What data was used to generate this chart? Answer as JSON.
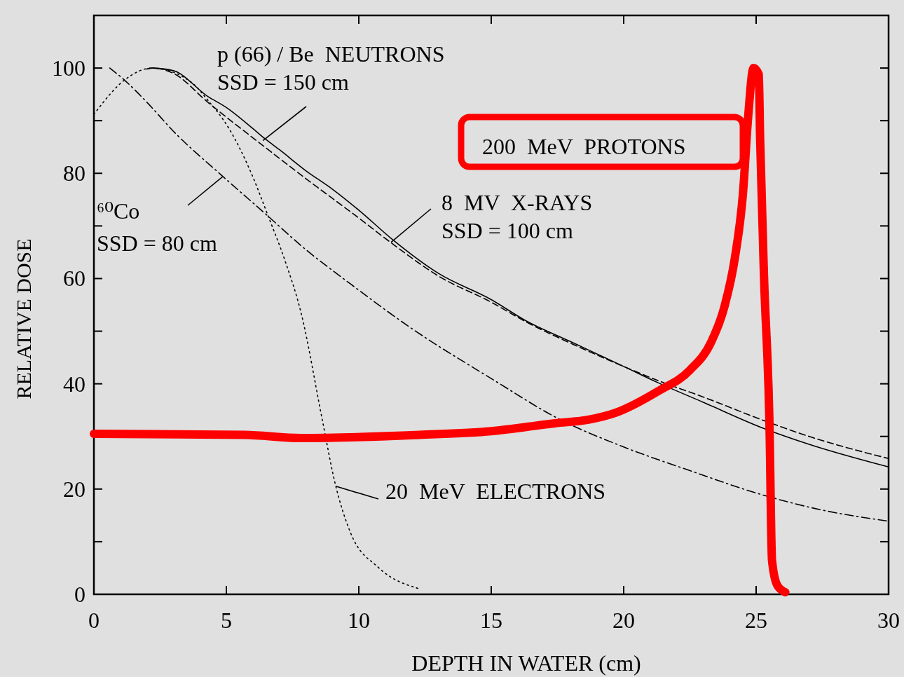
{
  "chart_data": {
    "type": "line",
    "xlabel": "DEPTH IN WATER (cm)",
    "ylabel": "RELATIVE DOSE",
    "xlim": [
      0,
      30
    ],
    "xticks": [
      0,
      5,
      10,
      15,
      20,
      25,
      30
    ],
    "ylim": [
      0,
      110
    ],
    "yticks": [
      0,
      {
        "value": 10,
        "label": null
      },
      20,
      {
        "value": 30,
        "label": null
      },
      40,
      {
        "value": 50,
        "label": null
      },
      60,
      {
        "value": 70,
        "label": null
      },
      80,
      {
        "value": 90,
        "label": null
      },
      100
    ],
    "grid": false,
    "annotations": [
      {
        "text": "p (66) / Be  NEUTRONS\nSSD = 150 cm",
        "x": 6.38,
        "y": 86.2
      },
      {
        "text": "8  MV  X-RAYS\nSSD = 100 cm",
        "x": 11.22,
        "y": 66.9
      },
      {
        "text": "⁶⁰Co\nSSD = 80 cm",
        "x": 4.87,
        "y": 79.4
      },
      {
        "text": "20  MeV  ELECTRONS",
        "x": 9.15,
        "y": 20.5
      },
      "200  MeV  PROTONS"
    ],
    "series": [
      {
        "color": "#000000",
        "line_style": "solid",
        "x": [
          2,
          2.2,
          3,
          4.3,
          5,
          6,
          6.45,
          7,
          8,
          9,
          10,
          11.3,
          13,
          15,
          16.3,
          18,
          20,
          21.3,
          23,
          25.3,
          27,
          30
        ],
        "values": [
          99.8,
          100,
          99.5,
          94.6,
          92.5,
          88.5,
          86.6,
          84.5,
          80.5,
          77,
          73,
          67.3,
          61,
          56,
          52,
          48,
          43.3,
          40.2,
          36.5,
          31.5,
          28.5,
          24.2
        ]
      },
      {
        "color": "#000000",
        "line_style": "dashed",
        "x": [
          2,
          2.2,
          3,
          4.3,
          6.45,
          8,
          10,
          11.3,
          13,
          15,
          16.3,
          18,
          20,
          21.3,
          23,
          25.3,
          27,
          30
        ],
        "values": [
          99.8,
          100,
          99,
          93.5,
          85,
          79,
          71.5,
          66.5,
          60.5,
          55.5,
          51.8,
          47.7,
          43.3,
          40.6,
          37.5,
          33,
          30,
          25.8
        ]
      },
      {
        "color": "#000000",
        "line_style": "dashdot",
        "x": [
          0.6,
          1.2,
          2,
          3,
          4.87,
          6.43,
          8,
          9.68,
          12,
          15,
          17.6,
          20,
          22.5,
          25.3,
          27.5,
          30
        ],
        "values": [
          100,
          97.5,
          93.5,
          88,
          79.4,
          72.5,
          65.5,
          59,
          50.5,
          41,
          33.2,
          28,
          23.5,
          18.8,
          16,
          13.9
        ]
      },
      {
        "color": "#000000",
        "line_style": "dotted",
        "x": [
          0,
          1.2,
          2.2,
          3.7,
          4.3,
          5.1,
          5.9,
          6.6,
          7.2,
          7.83,
          8.62,
          9.1,
          9.68,
          10.74,
          12.25
        ],
        "values": [
          91.2,
          97.9,
          100,
          97.2,
          93.9,
          88.5,
          80.5,
          71.6,
          63.6,
          53.3,
          33.2,
          21.2,
          11.8,
          5.1,
          1.1
        ]
      },
      {
        "color": "#ff0000",
        "line_style": "solid",
        "x": [
          0,
          5.7,
          7.8,
          12.3,
          15,
          17.4,
          18.7,
          19.7,
          21.3,
          22.5,
          23.3,
          23.8,
          24.2,
          24.5,
          24.7,
          24.9,
          25.1,
          25.15,
          25.3,
          25.5,
          25.6,
          25.8,
          26.1
        ],
        "values": [
          30.5,
          30.3,
          29.7,
          30.3,
          31,
          32.5,
          33.2,
          34.5,
          38.6,
          42.6,
          47.9,
          54.6,
          64,
          76,
          90.8,
          100,
          98.8,
          86.7,
          60,
          33.2,
          6.4,
          1.7,
          0.4
        ]
      }
    ]
  }
}
